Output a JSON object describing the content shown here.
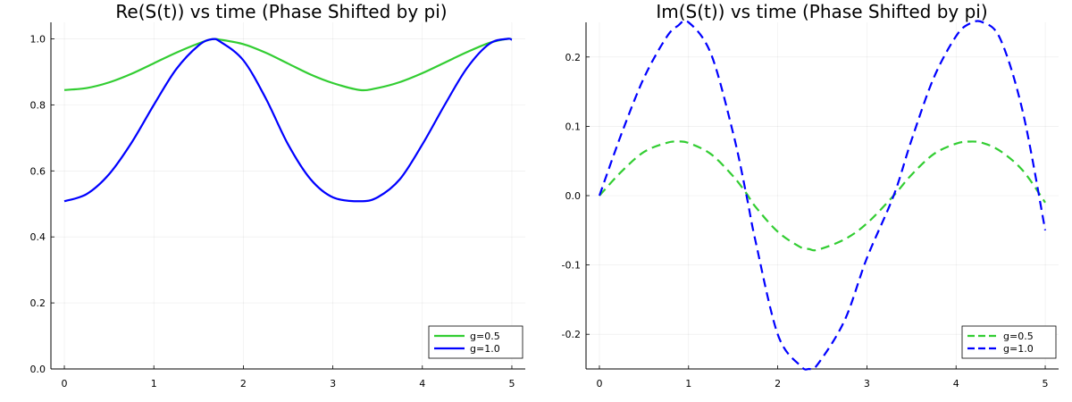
{
  "chart_data": [
    {
      "type": "line",
      "title": "Re(S(t)) vs time (Phase Shifted by pi)",
      "xlabel": "",
      "ylabel": "",
      "xlim": [
        -0.15,
        5.15
      ],
      "ylim": [
        0.0,
        1.05
      ],
      "xticks": [
        "0",
        "1",
        "2",
        "3",
        "4",
        "5"
      ],
      "yticks": [
        "0.0",
        "0.2",
        "0.4",
        "0.6",
        "0.8",
        "1.0"
      ],
      "grid": true,
      "legend_position": "bottom-right",
      "line_style": "solid",
      "x": [
        0.0,
        0.25,
        0.5,
        0.75,
        1.0,
        1.25,
        1.5,
        1.65,
        1.75,
        2.0,
        2.25,
        2.5,
        2.75,
        3.0,
        3.3,
        3.5,
        3.75,
        4.0,
        4.25,
        4.5,
        4.75,
        4.95,
        5.0
      ],
      "series": [
        {
          "name": "g=0.5",
          "color": "#32cd32",
          "values": [
            0.845,
            0.851,
            0.868,
            0.894,
            0.926,
            0.958,
            0.986,
            0.999,
            0.997,
            0.984,
            0.958,
            0.925,
            0.892,
            0.866,
            0.845,
            0.851,
            0.869,
            0.896,
            0.928,
            0.96,
            0.988,
            1.0,
            0.998
          ]
        },
        {
          "name": "g=1.0",
          "color": "#0000ff",
          "values": [
            0.508,
            0.53,
            0.59,
            0.685,
            0.8,
            0.908,
            0.98,
            0.999,
            0.99,
            0.935,
            0.82,
            0.68,
            0.575,
            0.52,
            0.508,
            0.52,
            0.575,
            0.68,
            0.8,
            0.912,
            0.985,
            1.0,
            0.997
          ]
        }
      ]
    },
    {
      "type": "line",
      "title": "Im(S(t)) vs time (Phase Shifted by pi)",
      "xlabel": "",
      "ylabel": "",
      "xlim": [
        -0.15,
        5.15
      ],
      "ylim": [
        -0.25,
        0.25
      ],
      "xticks": [
        "0",
        "1",
        "2",
        "3",
        "4",
        "5"
      ],
      "yticks": [
        "-0.2",
        "-0.1",
        "0.0",
        "0.1",
        "0.2"
      ],
      "grid": true,
      "legend_position": "bottom-right",
      "line_style": "dashed",
      "x": [
        0.0,
        0.25,
        0.5,
        0.75,
        0.88,
        1.0,
        1.25,
        1.5,
        1.65,
        1.75,
        2.0,
        2.25,
        2.35,
        2.45,
        2.75,
        3.0,
        3.3,
        3.5,
        3.75,
        4.0,
        4.15,
        4.3,
        4.5,
        4.75,
        5.0
      ],
      "series": [
        {
          "name": "g=0.5",
          "color": "#32cd32",
          "values": [
            0.0,
            0.035,
            0.063,
            0.076,
            0.078,
            0.076,
            0.06,
            0.028,
            0.003,
            -0.016,
            -0.052,
            -0.074,
            -0.077,
            -0.078,
            -0.063,
            -0.04,
            0.0,
            0.03,
            0.06,
            0.075,
            0.078,
            0.076,
            0.064,
            0.036,
            -0.01
          ]
        },
        {
          "name": "g=1.0",
          "color": "#0000ff",
          "values": [
            0.0,
            0.09,
            0.17,
            0.228,
            0.245,
            0.25,
            0.205,
            0.09,
            0.0,
            -0.065,
            -0.2,
            -0.245,
            -0.25,
            -0.243,
            -0.18,
            -0.09,
            0.0,
            0.08,
            0.17,
            0.23,
            0.248,
            0.25,
            0.225,
            0.12,
            -0.05
          ]
        }
      ]
    }
  ]
}
